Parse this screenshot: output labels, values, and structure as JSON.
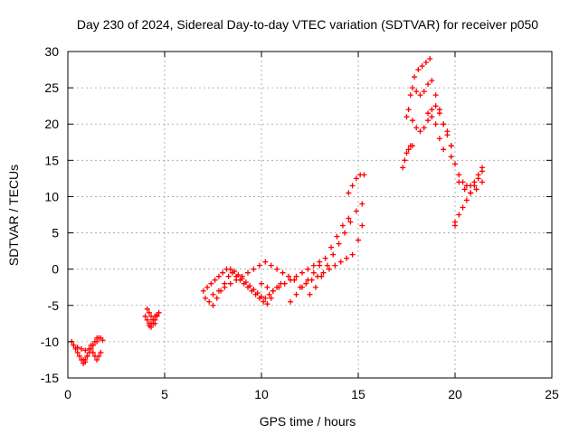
{
  "chart_data": {
    "type": "scatter",
    "title": "Day 230 of 2024, Sidereal Day-to-day VTEC variation (SDTVAR) for receiver p050",
    "xlabel": "GPS time / hours",
    "ylabel": "SDTVAR / TECUs",
    "xlim": [
      0,
      25
    ],
    "ylim": [
      -15,
      30
    ],
    "xticks": [
      "0",
      "5",
      "10",
      "15",
      "20",
      "25"
    ],
    "yticks": [
      "-15",
      "-10",
      "-5",
      "0",
      "5",
      "10",
      "15",
      "20",
      "25",
      "30"
    ],
    "grid": true,
    "marker": "plus",
    "color": "#ff0000",
    "series": [
      {
        "x": [
          0.2,
          0.3,
          0.4,
          0.5,
          0.6,
          0.7,
          0.8,
          0.9,
          1.0,
          1.1,
          1.2,
          1.3,
          1.4,
          1.5,
          1.6,
          1.7,
          1.8,
          0.3,
          0.5,
          0.7,
          0.9,
          1.1,
          1.3,
          1.5,
          0.8,
          0.9,
          1.0,
          1.1,
          1.2,
          1.3,
          1.4,
          1.5,
          1.6,
          1.7,
          4.0,
          4.1,
          4.2,
          4.3,
          4.4,
          4.5,
          4.6,
          4.7,
          4.1,
          4.2,
          4.3,
          4.4,
          4.5,
          4.2,
          4.3,
          4.4,
          4.5,
          4.6,
          7.0,
          7.2,
          7.4,
          7.6,
          7.8,
          8.0,
          8.2,
          8.4,
          8.6,
          8.8,
          9.0,
          9.2,
          9.4,
          9.6,
          9.8,
          10.0,
          10.2,
          10.4,
          10.6,
          10.8,
          11.0,
          7.1,
          7.3,
          7.5,
          7.7,
          7.9,
          8.1,
          8.3,
          8.5,
          8.7,
          8.9,
          9.1,
          9.3,
          9.5,
          9.7,
          9.9,
          10.1,
          10.3,
          10.5,
          7.5,
          7.8,
          8.1,
          8.4,
          8.7,
          9.0,
          9.3,
          9.6,
          9.9,
          10.2,
          10.5,
          10.8,
          11.1,
          11.4,
          11.7,
          10.0,
          10.3,
          10.6,
          10.9,
          11.2,
          11.5,
          11.8,
          12.1,
          12.4,
          12.7,
          13.0,
          11.5,
          11.8,
          12.1,
          12.4,
          12.7,
          13.0,
          13.3,
          13.6,
          13.9,
          14.2,
          14.5,
          12.0,
          12.3,
          12.6,
          12.9,
          13.2,
          13.5,
          13.8,
          14.1,
          14.4,
          14.7,
          15.0,
          15.2,
          12.5,
          12.8,
          13.1,
          13.4,
          13.7,
          14.0,
          14.3,
          14.6,
          14.9,
          15.2,
          14.5,
          14.7,
          14.9,
          15.1,
          15.3,
          17.3,
          17.4,
          17.5,
          17.6,
          17.7,
          17.8,
          17.5,
          17.7,
          17.9,
          18.1,
          18.3,
          18.5,
          18.7,
          17.8,
          18.0,
          18.2,
          18.4,
          18.6,
          18.8,
          19.0,
          19.2,
          19.4,
          19.6,
          19.8,
          17.6,
          17.8,
          18.0,
          18.2,
          18.4,
          18.6,
          18.8,
          19.0,
          19.2,
          19.4,
          18.6,
          18.8,
          19.0,
          19.2,
          19.4,
          19.6,
          19.8,
          19.8,
          20.0,
          20.2,
          20.4,
          20.6,
          20.8,
          21.0,
          21.2,
          21.4,
          20.0,
          20.2,
          20.4,
          20.6,
          20.8,
          21.0,
          21.2,
          21.4,
          20.2,
          20.5,
          20.8,
          21.1,
          21.4,
          20.0
        ],
        "y": [
          -10.0,
          -10.5,
          -11.0,
          -11.5,
          -12.0,
          -12.5,
          -13.0,
          -12.5,
          -12.0,
          -11.5,
          -11.0,
          -10.5,
          -10.0,
          -9.5,
          -9.5,
          -9.5,
          -9.8,
          -10.5,
          -10.8,
          -11.0,
          -11.2,
          -11.0,
          -10.5,
          -10.0,
          -12.5,
          -12.8,
          -12.0,
          -11.0,
          -10.5,
          -11.5,
          -12.0,
          -12.5,
          -12.0,
          -11.5,
          -6.5,
          -7.0,
          -7.5,
          -8.0,
          -7.5,
          -7.0,
          -6.5,
          -6.0,
          -5.5,
          -6.0,
          -6.5,
          -7.0,
          -7.5,
          -7.8,
          -7.5,
          -7.0,
          -6.5,
          -6.3,
          -3.0,
          -2.5,
          -2.0,
          -1.5,
          -1.0,
          -0.5,
          0.0,
          0.0,
          -0.3,
          -0.8,
          -1.3,
          -1.8,
          -2.3,
          -2.8,
          -3.3,
          -3.8,
          -4.0,
          -3.5,
          -3.0,
          -2.5,
          -2.0,
          -4.0,
          -4.5,
          -5.0,
          -4.0,
          -3.0,
          -2.0,
          -1.0,
          -0.5,
          -1.0,
          -1.5,
          -2.0,
          -2.5,
          -3.0,
          -3.5,
          -4.0,
          -4.5,
          -4.8,
          -4.0,
          -3.5,
          -3.0,
          -2.5,
          -2.0,
          -1.5,
          -1.0,
          -0.5,
          0.0,
          0.5,
          1.0,
          0.5,
          0.0,
          -0.5,
          -1.0,
          -1.5,
          -2.0,
          -2.5,
          -3.0,
          -2.5,
          -2.0,
          -1.5,
          -1.0,
          -0.5,
          0.0,
          0.5,
          1.0,
          -4.5,
          -3.5,
          -2.5,
          -1.5,
          -0.5,
          0.5,
          1.5,
          3.0,
          4.5,
          6.0,
          7.0,
          -2.5,
          -2.0,
          -1.5,
          -1.0,
          -0.5,
          0.0,
          0.5,
          1.0,
          1.5,
          2.0,
          4.0,
          6.0,
          -3.5,
          -2.5,
          -1.0,
          0.5,
          2.0,
          3.5,
          5.0,
          6.5,
          8.0,
          9.0,
          10.5,
          11.5,
          12.5,
          13.0,
          13.0,
          14.0,
          15.0,
          16.0,
          16.5,
          17.0,
          17.0,
          21.0,
          24.0,
          26.5,
          27.5,
          28.0,
          28.5,
          29.0,
          25.0,
          24.5,
          24.0,
          24.5,
          25.5,
          26.0,
          24.0,
          22.0,
          20.0,
          18.5,
          17.0,
          22.0,
          20.5,
          19.5,
          19.0,
          19.5,
          20.5,
          21.0,
          20.0,
          18.0,
          16.5,
          21.5,
          22.0,
          22.5,
          21.5,
          20.0,
          19.0,
          17.0,
          15.5,
          14.5,
          13.0,
          12.0,
          11.5,
          11.5,
          12.0,
          13.0,
          14.0,
          6.5,
          7.5,
          8.5,
          9.5,
          10.5,
          11.5,
          12.5,
          13.5,
          12.0,
          11.0,
          10.5,
          11.0,
          12.0,
          6.0
        ]
      }
    ]
  }
}
